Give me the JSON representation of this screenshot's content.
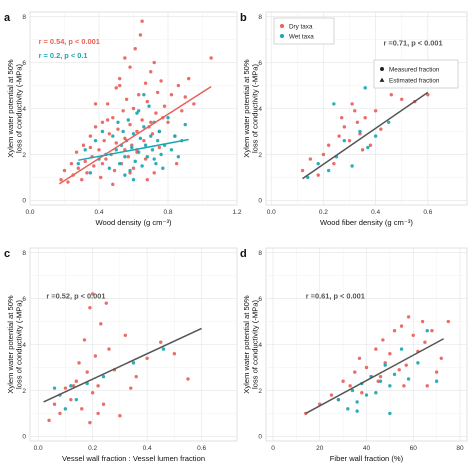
{
  "chart_data": [
    {
      "panel": "a",
      "type": "scatter",
      "xlabel": "Wood density (g cm⁻³)",
      "ylabel_lines": [
        "Xylem water potential at 50%",
        "loss of conductivity (-MPa)"
      ],
      "xlim": [
        0,
        1.2
      ],
      "ylim": [
        -0.2,
        8.2
      ],
      "xticks": [
        0.0,
        0.4,
        0.8,
        1.2
      ],
      "xticklabels": [
        "0.0",
        "0.4",
        "0.8",
        "1.2"
      ],
      "yticks": [
        0,
        2,
        4,
        6,
        8
      ],
      "yticklabels": [
        "0",
        "2",
        "4",
        "6",
        "8"
      ],
      "grid": true,
      "annotations": [
        {
          "text": "r = 0.54, p < 0.001",
          "color": "#e8615b",
          "x": 0.05,
          "y": 6.8
        },
        {
          "text": "r = 0.2, p < 0.1",
          "color": "#1aa7b4",
          "x": 0.05,
          "y": 6.2
        }
      ],
      "series": [
        {
          "name": "Dry taxa",
          "color": "#e8615b",
          "marker": "circle",
          "x": [
            0.18,
            0.2,
            0.22,
            0.24,
            0.25,
            0.27,
            0.28,
            0.3,
            0.31,
            0.32,
            0.33,
            0.35,
            0.36,
            0.37,
            0.38,
            0.4,
            0.41,
            0.42,
            0.43,
            0.44,
            0.45,
            0.46,
            0.47,
            0.48,
            0.49,
            0.5,
            0.5,
            0.51,
            0.52,
            0.53,
            0.54,
            0.55,
            0.55,
            0.56,
            0.57,
            0.58,
            0.58,
            0.59,
            0.6,
            0.6,
            0.61,
            0.62,
            0.62,
            0.63,
            0.64,
            0.65,
            0.66,
            0.67,
            0.67,
            0.68,
            0.69,
            0.7,
            0.71,
            0.72,
            0.73,
            0.74,
            0.75,
            0.76,
            0.77,
            0.78,
            0.8,
            0.82,
            0.84,
            0.86,
            0.88,
            0.9,
            0.92,
            0.95,
            1.05,
            0.35,
            0.45,
            0.55,
            0.65,
            0.75,
            0.42,
            0.52,
            0.62,
            0.72,
            0.48,
            0.58,
            0.68,
            0.38,
            0.85,
            0.7
          ],
          "y": [
            0.9,
            1.3,
            0.8,
            1.6,
            1.1,
            2.1,
            1.4,
            0.9,
            2.4,
            1.7,
            1.2,
            2.8,
            1.9,
            1.5,
            3.2,
            2.2,
            1.0,
            3.4,
            2.6,
            1.8,
            4.2,
            2.9,
            2.0,
            3.6,
            1.3,
            4.9,
            2.5,
            3.1,
            5.3,
            1.6,
            3.9,
            6.2,
            2.7,
            4.4,
            1.9,
            3.3,
            5.8,
            2.4,
            4.0,
            1.4,
            6.6,
            3.0,
            2.1,
            4.6,
            7.2,
            3.5,
            2.6,
            5.1,
            1.8,
            4.3,
            3.2,
            5.6,
            2.9,
            6.0,
            3.8,
            4.7,
            2.3,
            5.2,
            3.6,
            4.1,
            3.4,
            4.6,
            2.8,
            5.0,
            3.9,
            4.5,
            5.3,
            4.2,
            6.2,
            2.3,
            3.5,
            2.2,
            7.8,
            3.0,
            1.6,
            5.0,
            2.2,
            1.2,
            0.7,
            1.2,
            0.9,
            4.2,
            1.6,
            3.4
          ]
        },
        {
          "name": "Wet taxa",
          "color": "#1aa7b4",
          "marker": "circle",
          "x": [
            0.28,
            0.32,
            0.35,
            0.38,
            0.4,
            0.42,
            0.44,
            0.46,
            0.48,
            0.5,
            0.51,
            0.52,
            0.53,
            0.54,
            0.55,
            0.56,
            0.57,
            0.58,
            0.59,
            0.6,
            0.61,
            0.62,
            0.63,
            0.64,
            0.65,
            0.66,
            0.67,
            0.68,
            0.69,
            0.7,
            0.71,
            0.72,
            0.73,
            0.74,
            0.75,
            0.76,
            0.78,
            0.8,
            0.82,
            0.84,
            0.86,
            0.88,
            0.9,
            0.6,
            0.66,
            0.72,
            0.55,
            0.63,
            0.77
          ],
          "y": [
            1.6,
            2.2,
            1.2,
            2.6,
            1.8,
            3.0,
            2.0,
            1.4,
            2.8,
            2.2,
            3.4,
            1.6,
            2.4,
            3.0,
            1.9,
            2.6,
            3.5,
            1.3,
            2.3,
            2.9,
            1.7,
            3.8,
            2.1,
            2.7,
            1.5,
            3.2,
            2.4,
            1.9,
            4.1,
            2.8,
            2.2,
            3.4,
            1.6,
            2.6,
            3.0,
            2.0,
            2.4,
            3.6,
            2.2,
            2.8,
            1.9,
            2.6,
            3.3,
            0.9,
            4.6,
            1.8,
            1.1,
            3.9,
            1.4
          ]
        }
      ],
      "fits": [
        {
          "color": "#e8615b",
          "x": [
            0.17,
            1.05
          ],
          "y": [
            0.72,
            4.95
          ]
        },
        {
          "color": "#1aa7b4",
          "x": [
            0.28,
            0.92
          ],
          "y": [
            1.75,
            2.65
          ]
        }
      ]
    },
    {
      "panel": "b",
      "type": "scatter",
      "xlabel": "Wood fiber density (g cm⁻³)",
      "ylabel_lines": [
        "Xylem water potential at 50%",
        "loss of conductivity (-MPa)"
      ],
      "xlim": [
        -0.02,
        0.75
      ],
      "ylim": [
        -0.2,
        8.2
      ],
      "xticks": [
        0.0,
        0.2,
        0.4,
        0.6
      ],
      "xticklabels": [
        "0.0",
        "0.2",
        "0.4",
        "0.6"
      ],
      "yticks": [
        0,
        2,
        4,
        6,
        8
      ],
      "yticklabels": [
        "0",
        "2",
        "4",
        "6",
        "8"
      ],
      "grid": true,
      "legend": {
        "placement": "top-left",
        "entries": [
          {
            "label": "Dry taxa",
            "color": "#e8615b",
            "marker": "circle"
          },
          {
            "label": "Wet taxa",
            "color": "#1aa7b4",
            "marker": "circle"
          }
        ]
      },
      "legend2": {
        "placement": "right",
        "entries": [
          {
            "label": "Measured fraction",
            "color": "#222222",
            "marker": "circle"
          },
          {
            "label": "Estimated fraction",
            "color": "#222222",
            "marker": "triangle"
          }
        ]
      },
      "annotations": [
        {
          "text": "r =0.71, p < 0.001",
          "color": "#555555",
          "x": 0.43,
          "y": 6.75
        }
      ],
      "series": [
        {
          "name": "Dry taxa",
          "color": "#e8615b",
          "marker": "circle",
          "x": [
            0.12,
            0.15,
            0.18,
            0.2,
            0.22,
            0.24,
            0.26,
            0.28,
            0.3,
            0.31,
            0.33,
            0.34,
            0.36,
            0.38,
            0.4,
            0.42,
            0.46,
            0.5,
            0.55,
            0.6,
            0.27,
            0.32,
            0.35
          ],
          "y": [
            1.3,
            1.8,
            1.1,
            2.0,
            2.4,
            1.6,
            2.8,
            3.2,
            2.6,
            4.2,
            3.4,
            2.9,
            3.6,
            2.4,
            3.9,
            3.1,
            4.6,
            4.4,
            4.3,
            4.6,
            3.6,
            3.9,
            2.2
          ]
        },
        {
          "name": "Wet taxa",
          "color": "#1aa7b4",
          "marker": "circle",
          "x": [
            0.14,
            0.18,
            0.22,
            0.25,
            0.28,
            0.31,
            0.34,
            0.37,
            0.4,
            0.45,
            0.36,
            0.24
          ],
          "y": [
            1.0,
            1.6,
            1.3,
            1.9,
            2.6,
            1.5,
            3.0,
            2.3,
            2.8,
            3.4,
            4.9,
            4.2
          ]
        }
      ],
      "fits": [
        {
          "color": "#555555",
          "x": [
            0.12,
            0.6
          ],
          "y": [
            0.95,
            4.7
          ]
        }
      ]
    },
    {
      "panel": "c",
      "type": "scatter",
      "xlabel": "Vessel wall fraction : Vessel lumen fraction",
      "ylabel_lines": [
        "Xylem water potential at 50%",
        "loss of conductivity (-MPa)"
      ],
      "xlim": [
        -0.03,
        0.73
      ],
      "ylim": [
        -0.2,
        8.2
      ],
      "xticks": [
        0.0,
        0.2,
        0.4,
        0.6
      ],
      "xticklabels": [
        "0.0",
        "0.2",
        "0.4",
        "0.6"
      ],
      "yticks": [
        0,
        2,
        4,
        6,
        8
      ],
      "yticklabels": [
        "0",
        "2",
        "4",
        "6",
        "8"
      ],
      "grid": true,
      "annotations": [
        {
          "text": "r =0.52, p < 0.001",
          "color": "#555555",
          "x": 0.03,
          "y": 6.0
        }
      ],
      "series": [
        {
          "name": "Dry taxa",
          "color": "#e8615b",
          "marker": "circle",
          "x": [
            0.04,
            0.06,
            0.08,
            0.1,
            0.12,
            0.14,
            0.15,
            0.16,
            0.17,
            0.18,
            0.19,
            0.2,
            0.2,
            0.21,
            0.22,
            0.23,
            0.24,
            0.25,
            0.26,
            0.28,
            0.3,
            0.32,
            0.34,
            0.36,
            0.4,
            0.45,
            0.5,
            0.55,
            0.19,
            0.22,
            0.13
          ],
          "y": [
            0.7,
            1.4,
            1.0,
            2.1,
            1.6,
            2.4,
            3.2,
            1.2,
            4.2,
            2.8,
            5.6,
            1.9,
            6.2,
            3.5,
            2.2,
            4.9,
            1.4,
            5.8,
            3.8,
            2.9,
            0.9,
            4.4,
            2.1,
            2.6,
            3.4,
            4.1,
            3.6,
            2.5,
            0.6,
            1.0,
            2.2
          ]
        },
        {
          "name": "Wet taxa",
          "color": "#1aa7b4",
          "marker": "circle",
          "x": [
            0.06,
            0.1,
            0.14,
            0.18,
            0.24,
            0.35,
            0.46,
            0.08,
            0.12
          ],
          "y": [
            2.1,
            1.2,
            1.6,
            2.3,
            2.6,
            3.2,
            3.8,
            1.8,
            2.2
          ]
        }
      ],
      "fits": [
        {
          "color": "#555555",
          "x": [
            0.02,
            0.6
          ],
          "y": [
            1.5,
            4.7
          ]
        }
      ]
    },
    {
      "panel": "d",
      "type": "scatter",
      "xlabel": "Fiber wall fraction (%)",
      "ylabel_lines": [
        "Xylem water potential at 50%",
        "loss of conductivity (-MPa)"
      ],
      "xlim": [
        -3,
        83
      ],
      "ylim": [
        -0.2,
        8.2
      ],
      "xticks": [
        0,
        20,
        40,
        60,
        80
      ],
      "xticklabels": [
        "0",
        "20",
        "40",
        "60",
        "80"
      ],
      "yticks": [
        0,
        2,
        4,
        6,
        8
      ],
      "yticklabels": [
        "0",
        "2",
        "4",
        "6",
        "8"
      ],
      "grid": true,
      "annotations": [
        {
          "text": "r =0.61, p < 0.001",
          "color": "#555555",
          "x": 14,
          "y": 6.0
        }
      ],
      "series": [
        {
          "name": "Dry taxa",
          "color": "#e8615b",
          "marker": "circle",
          "x": [
            14,
            20,
            25,
            28,
            30,
            33,
            35,
            37,
            38,
            40,
            42,
            44,
            45,
            47,
            48,
            50,
            52,
            54,
            55,
            57,
            58,
            60,
            62,
            64,
            65,
            66,
            68,
            70,
            72,
            75,
            46,
            56
          ],
          "y": [
            1.0,
            1.4,
            1.8,
            1.6,
            2.4,
            2.2,
            2.8,
            3.4,
            1.9,
            3.0,
            2.6,
            3.8,
            2.4,
            4.2,
            3.2,
            3.6,
            4.6,
            2.9,
            4.8,
            3.1,
            5.2,
            4.4,
            3.7,
            5.0,
            4.1,
            2.2,
            4.6,
            2.8,
            3.4,
            5.0,
            2.6,
            2.2
          ]
        },
        {
          "name": "Wet taxa",
          "color": "#1aa7b4",
          "marker": "circle",
          "x": [
            28,
            32,
            34,
            36,
            38,
            40,
            42,
            44,
            46,
            48,
            50,
            52,
            55,
            58,
            62,
            66,
            70,
            36,
            50
          ],
          "y": [
            1.6,
            1.2,
            2.0,
            1.5,
            2.3,
            1.8,
            2.6,
            1.9,
            2.4,
            3.1,
            2.2,
            2.7,
            3.8,
            2.5,
            3.2,
            4.6,
            2.4,
            1.1,
            1.0
          ]
        }
      ],
      "fits": [
        {
          "color": "#555555",
          "x": [
            14,
            73
          ],
          "y": [
            1.0,
            4.25
          ]
        }
      ]
    }
  ]
}
